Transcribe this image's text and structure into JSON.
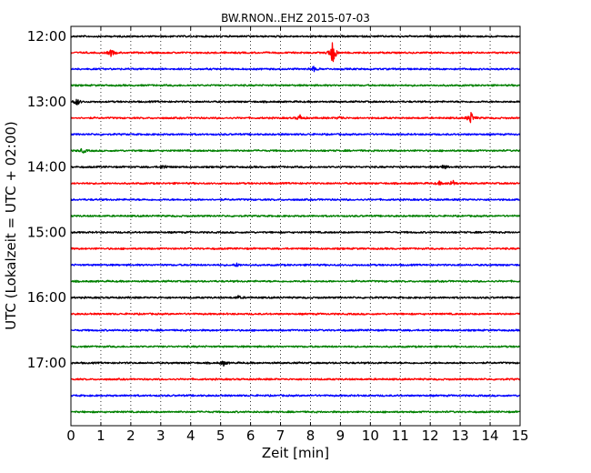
{
  "chart_data": {
    "type": "line",
    "title": "BW.RNON..EHZ 2015-07-03",
    "xlabel": "Zeit  [min]",
    "ylabel": "UTC (Lokalzeit = UTC + 02:00)",
    "xlim": [
      0,
      15
    ],
    "x_ticks": [
      0,
      1,
      2,
      3,
      4,
      5,
      6,
      7,
      8,
      9,
      10,
      11,
      12,
      13,
      14,
      15
    ],
    "y_ticks": [
      "12:00",
      "13:00",
      "14:00",
      "15:00",
      "16:00",
      "17:00"
    ],
    "grid": "vertical dotted at each minute",
    "trace_start_hours": [
      "12:00",
      "12:15",
      "12:30",
      "12:45",
      "13:00",
      "13:15",
      "13:30",
      "13:45",
      "14:00",
      "14:15",
      "14:30",
      "14:45",
      "15:00",
      "15:15",
      "15:30",
      "15:45",
      "16:00",
      "16:15",
      "16:30",
      "16:45",
      "17:00",
      "17:15",
      "17:30",
      "17:45"
    ],
    "trace_colors": [
      "#000000",
      "#ff0000",
      "#0000ff",
      "#008000"
    ],
    "events": [
      {
        "trace": 1,
        "minute": 1.35,
        "amplitude": 0.45
      },
      {
        "trace": 1,
        "minute": 8.75,
        "amplitude": 1.6
      },
      {
        "trace": 2,
        "minute": 8.1,
        "amplitude": 0.3
      },
      {
        "trace": 4,
        "minute": 0.2,
        "amplitude": 0.45
      },
      {
        "trace": 5,
        "minute": 7.65,
        "amplitude": 0.35
      },
      {
        "trace": 5,
        "minute": 13.35,
        "amplitude": 0.8
      },
      {
        "trace": 5,
        "minute": 9.0,
        "amplitude": 0.2
      },
      {
        "trace": 7,
        "minute": 0.4,
        "amplitude": 0.3
      },
      {
        "trace": 8,
        "minute": 3.1,
        "amplitude": 0.3
      },
      {
        "trace": 8,
        "minute": 12.45,
        "amplitude": 0.25
      },
      {
        "trace": 9,
        "minute": 12.75,
        "amplitude": 0.4
      },
      {
        "trace": 9,
        "minute": 12.3,
        "amplitude": 0.2
      },
      {
        "trace": 14,
        "minute": 5.55,
        "amplitude": 0.2
      },
      {
        "trace": 16,
        "minute": 5.6,
        "amplitude": 0.2
      },
      {
        "trace": 20,
        "minute": 5.1,
        "amplitude": 0.3
      }
    ]
  }
}
